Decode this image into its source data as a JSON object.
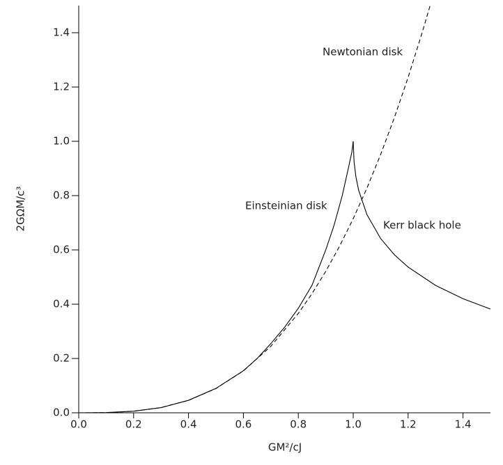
{
  "chart_data": {
    "type": "line",
    "xlabel": "GM²/cJ",
    "ylabel": "2GΩM/c³",
    "xlim": [
      0,
      1.5
    ],
    "ylim": [
      0,
      1.5
    ],
    "xticks": [
      {
        "value": 0,
        "label": "0.0"
      },
      0.2,
      0.4,
      0.6,
      0.8,
      {
        "value": 1,
        "label": "1.0"
      },
      1.2,
      1.4
    ],
    "yticks": [
      {
        "value": 0,
        "label": "0.0"
      },
      0.2,
      0.4,
      0.6,
      0.8,
      {
        "value": 1,
        "label": "1.0"
      },
      1.2,
      1.4
    ],
    "series": [
      {
        "name": "Newtonian disk",
        "color": "#000000",
        "style": "dashed",
        "x": [
          0,
          0.1,
          0.2,
          0.3,
          0.4,
          0.5,
          0.6,
          0.7,
          0.8,
          0.85,
          0.9,
          0.95,
          1.0,
          1.05,
          1.1,
          1.15,
          1.2,
          1.25,
          1.28
        ],
        "values": [
          0,
          0.0007,
          0.0057,
          0.0193,
          0.0458,
          0.0894,
          0.1544,
          0.2452,
          0.3661,
          0.4391,
          0.5212,
          0.613,
          0.715,
          0.8277,
          0.9517,
          1.0875,
          1.2355,
          1.3965,
          1.4995
        ]
      },
      {
        "name": "Einsteinian disk",
        "color": "#000000",
        "style": "solid",
        "x": [
          0,
          0.1,
          0.2,
          0.3,
          0.4,
          0.5,
          0.6,
          0.65,
          0.7,
          0.75,
          0.8,
          0.85,
          0.9,
          0.93,
          0.96,
          0.98,
          0.995,
          1.0
        ],
        "values": [
          0,
          0.0007,
          0.006,
          0.019,
          0.046,
          0.09,
          0.155,
          0.2,
          0.255,
          0.315,
          0.385,
          0.47,
          0.6,
          0.69,
          0.8,
          0.89,
          0.96,
          1.0
        ]
      },
      {
        "name": "Kerr black hole",
        "color": "#000000",
        "style": "solid",
        "x": [
          1.0,
          1.003,
          1.01,
          1.02,
          1.05,
          1.1,
          1.15,
          1.2,
          1.3,
          1.4,
          1.5
        ],
        "values": [
          1.0,
          0.9254,
          0.868,
          0.819,
          0.73,
          0.6417,
          0.582,
          0.5367,
          0.4693,
          0.4202,
          0.382
        ]
      }
    ]
  }
}
